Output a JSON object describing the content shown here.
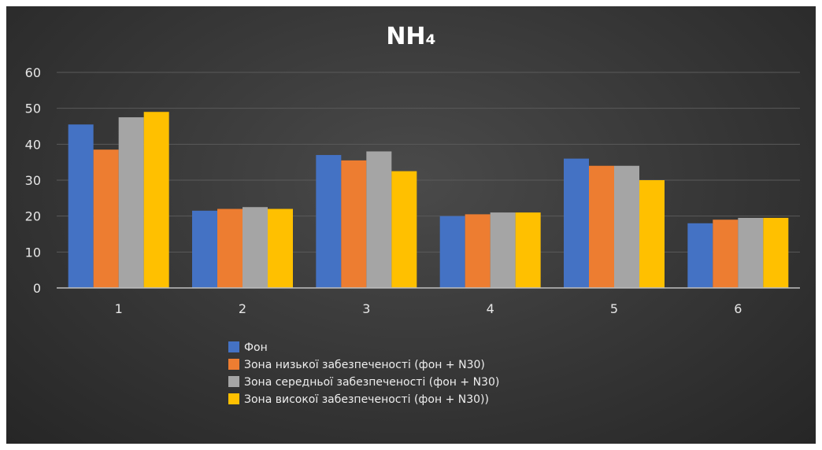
{
  "chart_data": {
    "type": "bar",
    "title": "NH₄",
    "categories": [
      "1",
      "2",
      "3",
      "4",
      "5",
      "6"
    ],
    "series": [
      {
        "name": "Фон",
        "color": "#4472c4",
        "values": [
          45.5,
          21.5,
          37.0,
          20.0,
          36.0,
          18.0
        ]
      },
      {
        "name": "Зона низької забезпеченості (фон + N30)",
        "color": "#ed7d31",
        "values": [
          38.5,
          22.0,
          35.5,
          20.5,
          34.0,
          19.0
        ]
      },
      {
        "name": "Зона середньої забезпеченості (фон + N30)",
        "color": "#a5a5a5",
        "values": [
          47.5,
          22.5,
          38.0,
          21.0,
          34.0,
          19.5
        ]
      },
      {
        "name": "Зона високої забезпеченості (фон + N30))",
        "color": "#ffc000",
        "values": [
          49.0,
          22.0,
          32.5,
          21.0,
          30.0,
          19.5
        ]
      }
    ],
    "yticks": [
      0,
      10,
      20,
      30,
      40,
      50,
      60
    ],
    "ylim": [
      0,
      60
    ],
    "xlabel": "",
    "ylabel": "",
    "grid": true,
    "legend": "bottom"
  }
}
